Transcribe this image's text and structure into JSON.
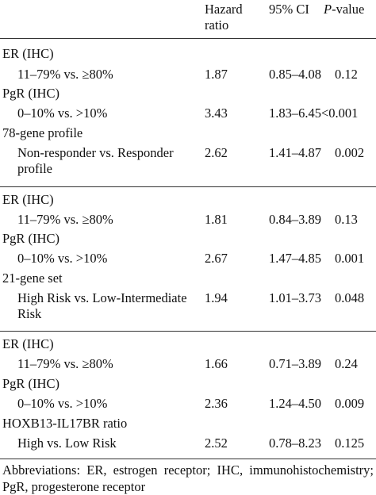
{
  "header": {
    "hazard_line1": "Hazard",
    "hazard_line2": "ratio",
    "ci": "95% CI",
    "p_italic": "P",
    "p_rest": "-value"
  },
  "sections": [
    {
      "rows": [
        {
          "label": "ER (IHC)"
        },
        {
          "label": "11–79% vs. ≥80%",
          "hr": "1.87",
          "ci": "0.85–4.08",
          "p": "0.12"
        },
        {
          "label": "PgR (IHC)"
        },
        {
          "label": "0–10% vs. >10%",
          "hr": "3.43",
          "ci": "1.83–6.45",
          "p": "<0.001"
        },
        {
          "label": "78-gene profile"
        },
        {
          "label_line1": "Non-responder vs. Responder",
          "label_line2": "profile",
          "hr": "2.62",
          "ci": "1.41–4.87",
          "p": "0.002"
        }
      ]
    },
    {
      "rows": [
        {
          "label": "ER (IHC)"
        },
        {
          "label": "11–79% vs. ≥80%",
          "hr": "1.81",
          "ci": "0.84–3.89",
          "p": "0.13"
        },
        {
          "label": "PgR (IHC)"
        },
        {
          "label": "0–10% vs. >10%",
          "hr": "2.67",
          "ci": "1.47–4.85",
          "p": "0.001"
        },
        {
          "label": "21-gene set"
        },
        {
          "label_line1": "High Risk vs. Low-Intermediate",
          "label_line2": "Risk",
          "hr": "1.94",
          "ci": "1.01–3.73",
          "p": "0.048"
        }
      ]
    },
    {
      "rows": [
        {
          "label": "ER (IHC)"
        },
        {
          "label": "11–79% vs. ≥80%",
          "hr": "1.66",
          "ci": "0.71–3.89",
          "p": "0.24"
        },
        {
          "label": "PgR (IHC)"
        },
        {
          "label": "0–10% vs. >10%",
          "hr": "2.36",
          "ci": "1.24–4.50",
          "p": "0.009"
        },
        {
          "label": "HOXB13-IL17BR ratio"
        },
        {
          "label": "High vs. Low Risk",
          "hr": "2.52",
          "ci": "0.78–8.23",
          "p": "0.125"
        }
      ]
    }
  ],
  "footnote": "Abbreviations: ER, estrogen receptor; IHC, immunohistochemistry; PgR, progesterone receptor"
}
